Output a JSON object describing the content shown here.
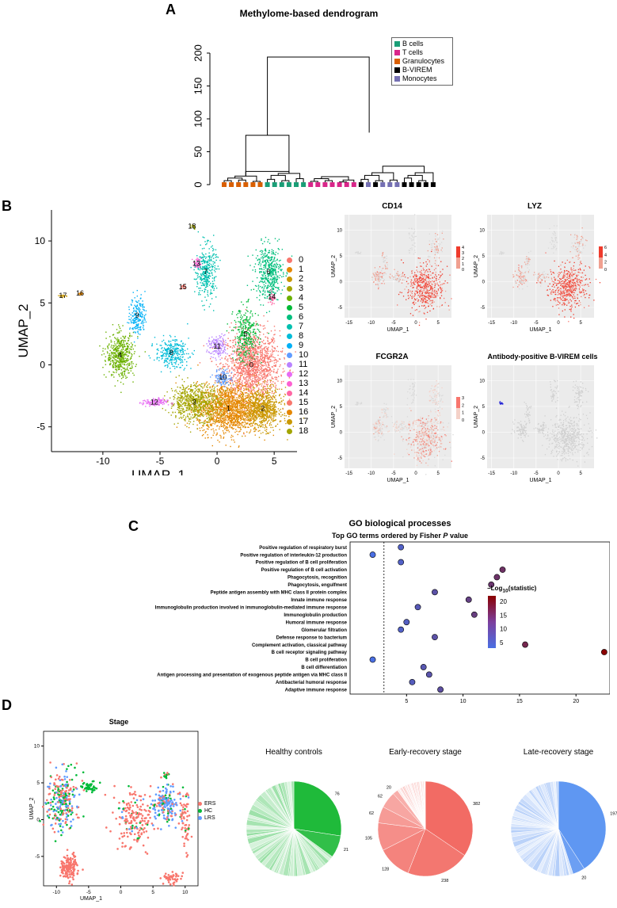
{
  "panels": {
    "a": "A",
    "b": "B",
    "c": "C",
    "d": "D"
  },
  "colors": {
    "b_cells": "#1a9e77",
    "t_cells": "#d9268a",
    "granulocytes": "#d95f02",
    "b_virem": "#000000",
    "monocytes": "#7570b3",
    "go_low": "#4a6fe3",
    "go_high": "#8b0000",
    "ers": "#f8766d",
    "hc": "#00ba38",
    "lrs": "#619cff"
  },
  "panelA": {
    "title": "Methylome-based dendrogram",
    "yticks": [
      "0",
      "50",
      "100",
      "150",
      "200"
    ],
    "legend": [
      {
        "label": "B cells",
        "color": "#1a9e77"
      },
      {
        "label": "T cells",
        "color": "#d9268a"
      },
      {
        "label": "Granulocytes",
        "color": "#d95f02"
      },
      {
        "label": "B-VIREM",
        "color": "#000000"
      },
      {
        "label": "Monocytes",
        "color": "#7570b3"
      }
    ],
    "leaves": [
      "G",
      "G",
      "G",
      "G",
      "G",
      "G",
      "B",
      "B",
      "B",
      "B",
      "B",
      "B",
      "T",
      "T",
      "T",
      "T",
      "T",
      "T",
      "T",
      "V",
      "M",
      "V",
      "M",
      "M",
      "M",
      "V",
      "V",
      "V",
      "V",
      "V"
    ]
  },
  "panelB": {
    "xlabel": "UMAP_1",
    "ylabel": "UMAP_2",
    "xticks": [
      "-10",
      "-5",
      "0",
      "5"
    ],
    "yticks": [
      "-5",
      "0",
      "5",
      "10"
    ],
    "clusters": [
      "0",
      "1",
      "2",
      "3",
      "4",
      "5",
      "6",
      "7",
      "8",
      "9",
      "10",
      "11",
      "12",
      "13",
      "14",
      "15",
      "16",
      "17",
      "18"
    ],
    "cluster_colors": [
      "#f8766d",
      "#e58700",
      "#c99800",
      "#a3a500",
      "#6bb100",
      "#00ba38",
      "#00bf7d",
      "#00c0af",
      "#00bcd8",
      "#00b0f6",
      "#619cff",
      "#b983ff",
      "#e76bf3",
      "#fd61d1",
      "#ff67a4",
      "#f8766d",
      "#e58700",
      "#c99800",
      "#a3a500"
    ],
    "small_panels": [
      {
        "title": "CD14",
        "legend": [
          "4",
          "3",
          "2",
          "1",
          "0"
        ]
      },
      {
        "title": "LYZ",
        "legend": [
          "6",
          "4",
          "2",
          "0"
        ]
      },
      {
        "title": "FCGR2A",
        "legend": [
          "3",
          "2",
          "1",
          "0"
        ]
      },
      {
        "title": "Antibody-positive B-VIREM cells",
        "legend": []
      }
    ],
    "small_xticks": [
      "-15",
      "-10",
      "-5",
      "0",
      "5"
    ],
    "small_yticks": [
      "-5",
      "0",
      "5",
      "10"
    ],
    "small_xlabel": "UMAP_1",
    "small_ylabel": "UMAP_2"
  },
  "panelC": {
    "title": "GO biological processes",
    "subtitle_pre": "Top GO terms ordered by Fisher ",
    "subtitle_p": "P",
    "subtitle_post": " value",
    "colorbar_title": "−Log",
    "colorbar_sub": "10",
    "colorbar_title_post": "(statistic)",
    "colorbar_ticks": [
      "20",
      "15",
      "10",
      "5"
    ],
    "xticks": [
      "5",
      "10",
      "15",
      "20"
    ]
  },
  "chart_data": {
    "type": "scatter",
    "title": "GO biological processes",
    "xlabel": "",
    "ylabel": "",
    "xlim": [
      0,
      23
    ],
    "terms": [
      {
        "label": "Positive regulation of respiratory burst",
        "value": 4.5
      },
      {
        "label": "Positive regulation of interleukin-12 production",
        "value": 2.0
      },
      {
        "label": "Positive regulation of B cell proliferation",
        "value": 4.5
      },
      {
        "label": "Positive regulation of B cell activation",
        "value": 13.5
      },
      {
        "label": "Phagocytosis, recognition",
        "value": 13.0
      },
      {
        "label": "Phagocytosis, engulfment",
        "value": 12.5
      },
      {
        "label": "Peptide antigen assembly with MHC class II protein complex",
        "value": 7.5
      },
      {
        "label": "Innate immune response",
        "value": 10.5
      },
      {
        "label": "Immunoglobulin production involved in immunoglobulin-mediated immune response",
        "value": 6.0
      },
      {
        "label": "Immunoglobulin production",
        "value": 11.0
      },
      {
        "label": "Humoral immune response",
        "value": 5.0
      },
      {
        "label": "Glomerular filtration",
        "value": 4.5
      },
      {
        "label": "Defense response to bacterium",
        "value": 7.5
      },
      {
        "label": "Complement activation, classical pathway",
        "value": 15.5
      },
      {
        "label": "B cell receptor signaling pathway",
        "value": 22.5
      },
      {
        "label": "B cell proliferation",
        "value": 2.0
      },
      {
        "label": "B cell differentiation",
        "value": 6.5
      },
      {
        "label": "Antigen processing and presentation of exogenous peptide antigen via MHC class II",
        "value": 7.0
      },
      {
        "label": "Antibacterial humoral response",
        "value": 5.5
      },
      {
        "label": "Adaptive immune response",
        "value": 8.0
      }
    ]
  },
  "panelD": {
    "umap_title": "Stage",
    "xlabel": "UMAP_1",
    "ylabel": "UMAP_2",
    "xticks": [
      "-10",
      "-5",
      "0",
      "5",
      "10"
    ],
    "yticks": [
      "-5",
      "0",
      "5",
      "10"
    ],
    "legend": [
      {
        "label": "ERS",
        "color": "#f8766d"
      },
      {
        "label": "HC",
        "color": "#00ba38"
      },
      {
        "label": "LRS",
        "color": "#619cff"
      }
    ],
    "pies": [
      {
        "title": "Healthy controls",
        "color": "#1fba3a",
        "major": [
          76,
          21
        ],
        "labels": [
          "76",
          "21"
        ],
        "tail_count": 60
      },
      {
        "title": "Early-recovery stage",
        "color": "#f26b64",
        "major": [
          382,
          238,
          128,
          105,
          62,
          62,
          20
        ],
        "labels": [
          "382",
          "238",
          "128",
          "105",
          "62",
          "62",
          "20"
        ],
        "tail_count": 45
      },
      {
        "title": "Late-recovery stage",
        "color": "#5f97f2",
        "major": [
          197,
          20
        ],
        "labels": [
          "197",
          "20"
        ],
        "tail_count": 50
      }
    ]
  }
}
